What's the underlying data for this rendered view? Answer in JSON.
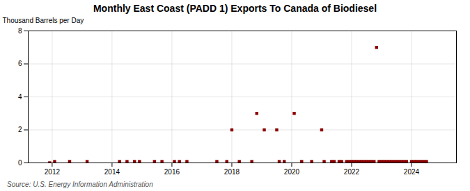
{
  "chart_data": {
    "type": "scatter",
    "title": "Monthly East Coast (PADD 1) Exports To Canada of Biodiesel",
    "ylabel": "Thousand Barrels per Day",
    "source": "Source: U.S. Energy Information Administration",
    "color": "#8b0000",
    "marker": "square",
    "grid": true,
    "xlim": [
      2011.2,
      2025.5
    ],
    "xticks": [
      2012,
      2014,
      2016,
      2018,
      2020,
      2022,
      2024
    ],
    "ylim": [
      0,
      8
    ],
    "yticks": [
      0,
      2,
      4,
      6,
      8
    ],
    "x": [
      2011.917,
      2012.083,
      2012.583,
      2013.167,
      2014.25,
      2014.5,
      2014.75,
      2014.917,
      2015.417,
      2015.667,
      2016.083,
      2016.25,
      2016.5,
      2017.5,
      2017.833,
      2018.0,
      2018.25,
      2018.667,
      2018.833,
      2019.083,
      2019.5,
      2019.583,
      2019.75,
      2020.083,
      2020.333,
      2020.667,
      2021.0,
      2021.083,
      2021.333,
      2021.417,
      2021.583,
      2021.667,
      2021.833,
      2021.917,
      2022.0,
      2022.083,
      2022.167,
      2022.25,
      2022.333,
      2022.417,
      2022.5,
      2022.583,
      2022.667,
      2022.75,
      2022.833,
      2022.917,
      2023.0,
      2023.083,
      2023.167,
      2023.25,
      2023.333,
      2023.417,
      2023.5,
      2023.583,
      2023.667,
      2023.75,
      2023.833,
      2024.0,
      2024.083,
      2024.167,
      2024.25,
      2024.333,
      2024.417,
      2024.5
    ],
    "values": [
      0.0,
      0.083,
      0.083,
      0.083,
      0.083,
      0.083,
      0.083,
      0.083,
      0.083,
      0.083,
      0.083,
      0.083,
      0.083,
      0.083,
      0.083,
      2.0,
      0.083,
      0.083,
      3.0,
      2.0,
      2.0,
      0.083,
      0.083,
      3.0,
      0.083,
      0.083,
      2.0,
      0.083,
      0.083,
      0.083,
      0.083,
      0.083,
      0.083,
      0.083,
      0.083,
      0.083,
      0.083,
      0.083,
      0.083,
      0.083,
      0.083,
      0.083,
      0.083,
      0.083,
      7.0,
      0.083,
      0.083,
      0.083,
      0.083,
      0.083,
      0.083,
      0.083,
      0.083,
      0.083,
      0.083,
      0.083,
      0.083,
      0.083,
      0.083,
      0.083,
      0.083,
      0.083,
      0.083,
      0.083
    ]
  }
}
